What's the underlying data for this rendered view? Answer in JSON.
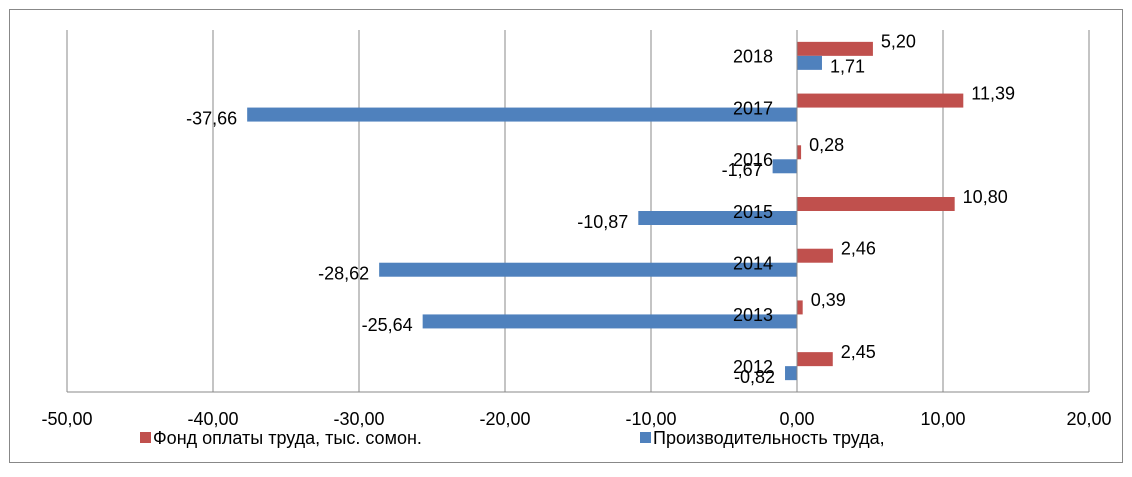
{
  "chart_data": {
    "type": "barh",
    "categories": [
      "2012",
      "2013",
      "2014",
      "2015",
      "2016",
      "2017",
      "2018"
    ],
    "series": [
      {
        "name": "Фонд оплаты труда, тыс. сомон.",
        "color": "#c0504d",
        "values": [
          2.45,
          0.39,
          2.46,
          10.8,
          0.28,
          11.39,
          5.2
        ],
        "value_labels": [
          "2,45",
          "0,39",
          "2,46",
          "10,80",
          "0,28",
          "11,39",
          "5,20"
        ]
      },
      {
        "name": "Производительность труда,",
        "color": "#4f81bd",
        "values": [
          -0.82,
          -25.64,
          -28.62,
          -10.87,
          -1.67,
          -37.66,
          1.71
        ],
        "value_labels": [
          "-0,82",
          "-25,64",
          "-28,62",
          "-10,87",
          "-1,67",
          "-37,66",
          "1,71"
        ]
      }
    ],
    "xlim": [
      -50,
      20
    ],
    "xticks": [
      {
        "value": -50,
        "label": "-50,00"
      },
      {
        "value": -40,
        "label": "-40,00"
      },
      {
        "value": -30,
        "label": "-30,00"
      },
      {
        "value": -20,
        "label": "-20,00"
      },
      {
        "value": -10,
        "label": "-10,00"
      },
      {
        "value": 0,
        "label": "0,00"
      },
      {
        "value": 10,
        "label": "10,00"
      },
      {
        "value": 20,
        "label": "20,00"
      }
    ],
    "grid": true
  }
}
